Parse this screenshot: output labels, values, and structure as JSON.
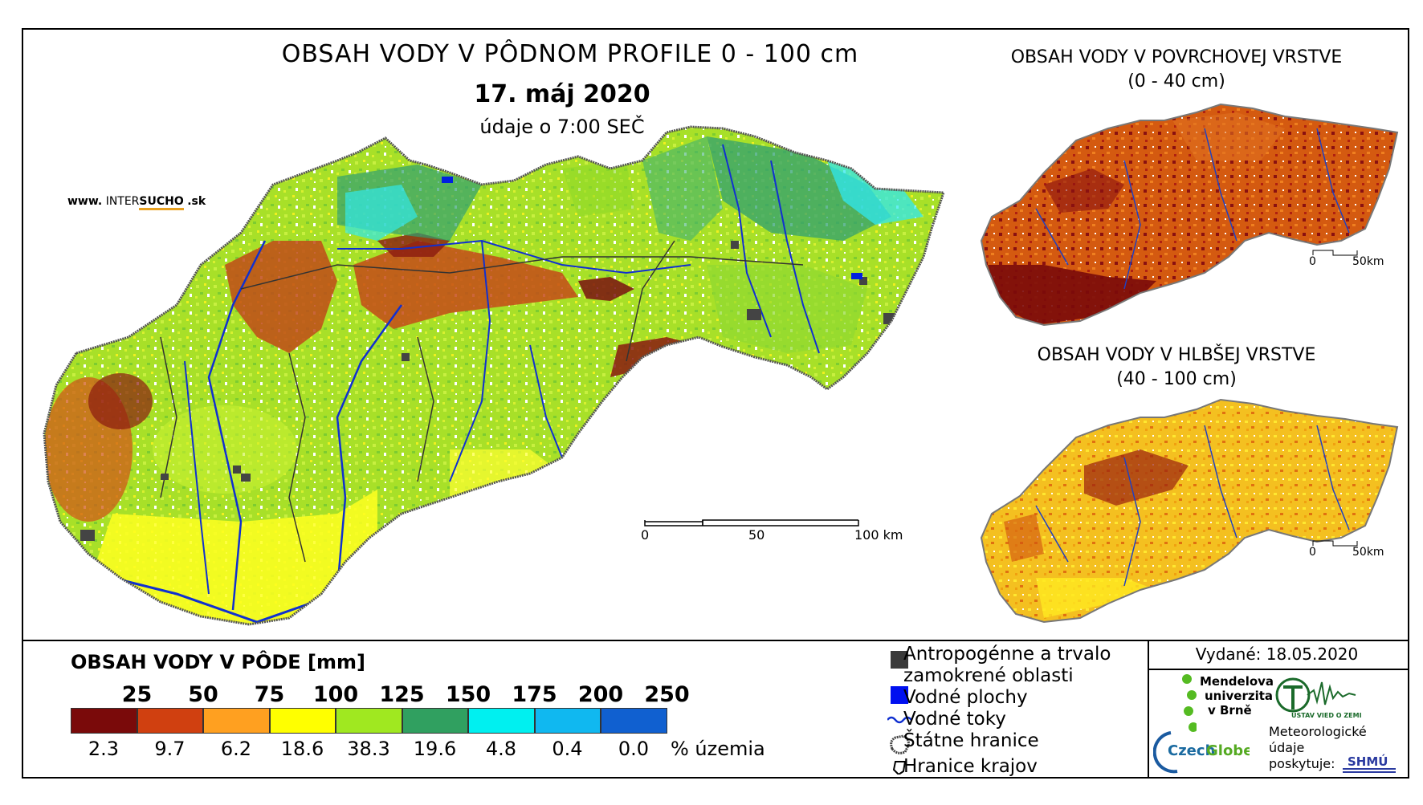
{
  "main_map": {
    "title": "OBSAH VODY V PÔDNOM PROFILE 0 - 100 cm",
    "date": "17. máj 2020",
    "subtitle": "údaje o 7:00 SEČ",
    "scale": [
      "0",
      "50",
      "100 km"
    ]
  },
  "site": {
    "prefix": "www.",
    "inter": "INTER",
    "sucho": "SUCHO",
    "suffix": ".sk"
  },
  "surface_map": {
    "title_line1": "OBSAH VODY V POVRCHOVEJ VRSTVE",
    "title_line2": "(0 - 40 cm)",
    "scale": [
      "0",
      "50km"
    ]
  },
  "deep_map": {
    "title_line1": "OBSAH VODY V HLBŠEJ VRSTVE",
    "title_line2": "(40 - 100 cm)",
    "scale": [
      "0",
      "50km"
    ]
  },
  "legend": {
    "title": "OBSAH VODY V PÔDE [mm]",
    "thresholds": [
      "25",
      "50",
      "75",
      "100",
      "125",
      "150",
      "175",
      "200",
      "250"
    ],
    "colors": [
      "#7a0a0a",
      "#d04010",
      "#ffa020",
      "#ffff00",
      "#a0e820",
      "#30a060",
      "#00f0f0",
      "#10b8f0",
      "#1060d0"
    ],
    "percentages": [
      "2.3",
      "9.7",
      "6.2",
      "18.6",
      "38.3",
      "19.6",
      "4.8",
      "0.4",
      "0.0"
    ],
    "percent_unit": "% územia"
  },
  "symbols": {
    "anthropogenic_line1": "Antropogénne a trvalo",
    "anthropogenic_line2": "zamokrené oblasti",
    "water_areas": "Vodné plochy",
    "water_streams": "Vodné toky",
    "state_border": "Štátne hranice",
    "region_border": "Hranice krajov"
  },
  "issued": "Vydané: 18.05.2020",
  "logos": {
    "mendel_1": "Mendelova",
    "mendel_2": "univerzita",
    "mendel_3": "v Brně",
    "earth_institute": "ÚSTAV VIED O ZEMI",
    "czechglobe_1": "Czech",
    "czechglobe_2": "Globe",
    "meteo_1": "Meteorologické",
    "meteo_2": "údaje",
    "meteo_3": "poskytuje:",
    "shmu": "SHMÚ"
  }
}
